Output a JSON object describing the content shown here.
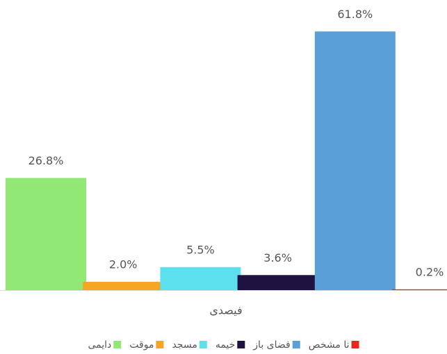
{
  "chart_data": {
    "type": "bar",
    "categories": [
      "فیصدی"
    ],
    "series": [
      {
        "name": "دایمی",
        "color": "#92e874",
        "values": [
          26.8
        ],
        "value_labels": [
          "26.8%"
        ]
      },
      {
        "name": "موقت",
        "color": "#f5a623",
        "values": [
          2.0
        ],
        "value_labels": [
          "2.0%"
        ]
      },
      {
        "name": "مسجد",
        "color": "#5de0ed",
        "values": [
          5.5
        ],
        "value_labels": [
          "5.5%"
        ]
      },
      {
        "name": "خیمه",
        "color": "#1f1241",
        "values": [
          3.6
        ],
        "value_labels": [
          "3.6%"
        ]
      },
      {
        "name": "فضای باز",
        "color": "#5b9fd9",
        "values": [
          61.8
        ],
        "value_labels": [
          "61.8%"
        ]
      },
      {
        "name": "نا مشخص",
        "color": "#e8281c",
        "values": [
          0.2
        ],
        "value_labels": [
          "0.2%"
        ]
      }
    ],
    "ylim": [
      0,
      65
    ]
  }
}
